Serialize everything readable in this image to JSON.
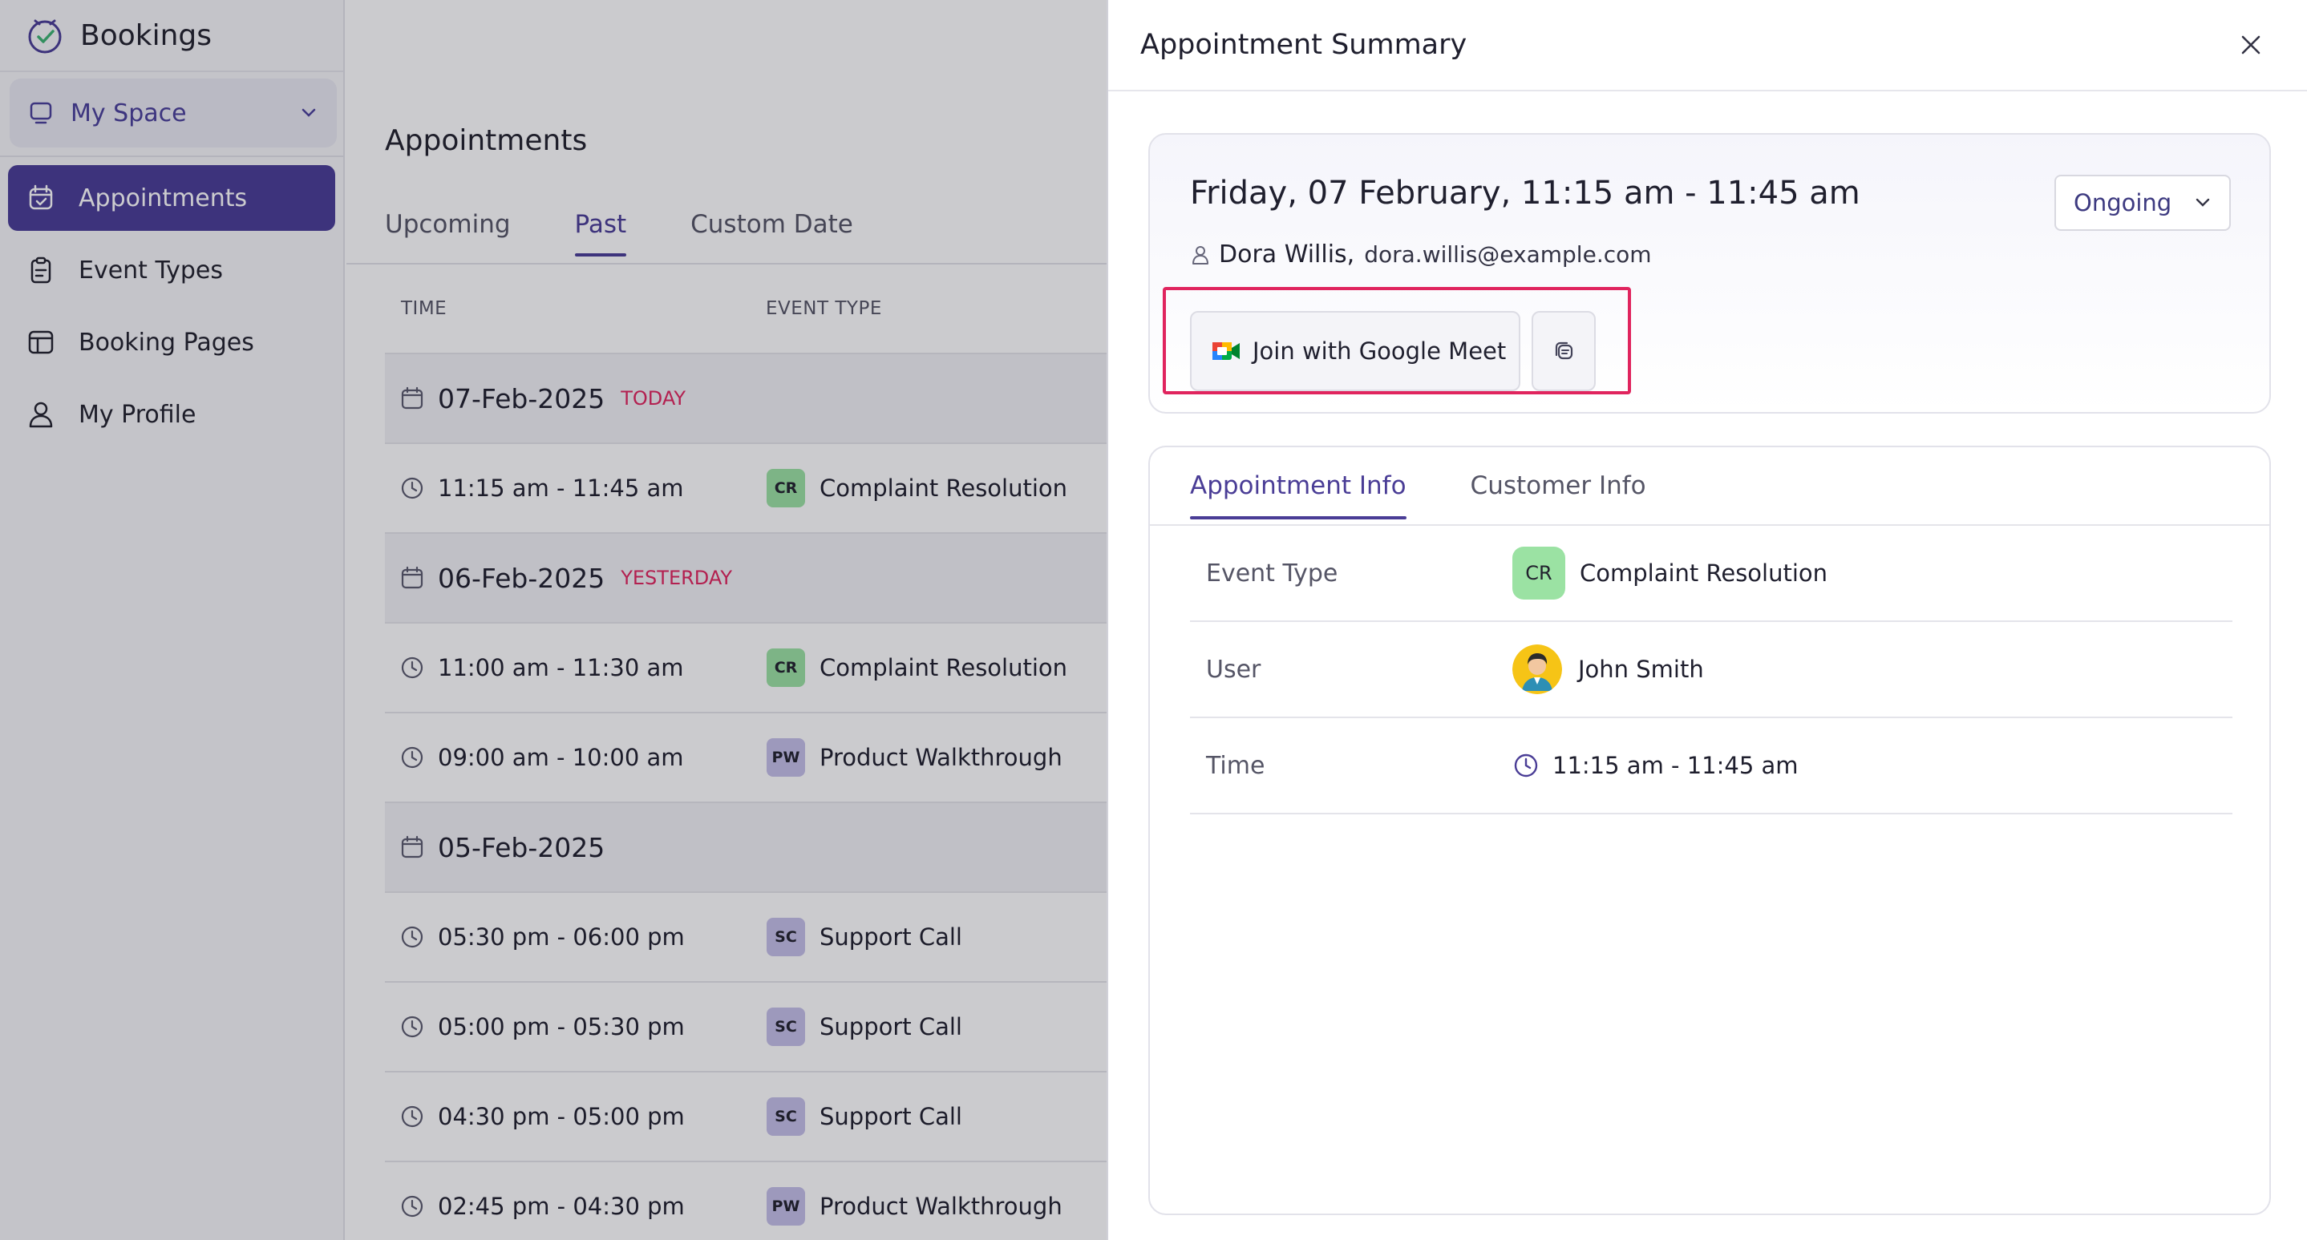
{
  "app": {
    "name": "Bookings"
  },
  "sidebar": {
    "space": {
      "label": "My Space"
    },
    "items": [
      {
        "label": "Appointments",
        "icon": "calendar-check-icon",
        "active": true
      },
      {
        "label": "Event Types",
        "icon": "clipboard-icon",
        "active": false
      },
      {
        "label": "Booking Pages",
        "icon": "layout-icon",
        "active": false
      },
      {
        "label": "My Profile",
        "icon": "user-icon",
        "active": false
      }
    ]
  },
  "main": {
    "title": "Appointments",
    "tabs": [
      {
        "label": "Upcoming",
        "active": false
      },
      {
        "label": "Past",
        "active": true
      },
      {
        "label": "Custom Date",
        "active": false
      }
    ],
    "columns": {
      "time": "TIME",
      "event_type": "EVENT TYPE"
    },
    "rows": [
      {
        "kind": "date",
        "date": "07-Feb-2025",
        "tag": "TODAY"
      },
      {
        "kind": "slot",
        "time": "11:15 am - 11:45 am",
        "badge": "CR",
        "event": "Complaint Resolution"
      },
      {
        "kind": "date",
        "date": "06-Feb-2025",
        "tag": "YESTERDAY"
      },
      {
        "kind": "slot",
        "time": "11:00 am - 11:30 am",
        "badge": "CR",
        "event": "Complaint Resolution"
      },
      {
        "kind": "slot",
        "time": "09:00 am - 10:00 am",
        "badge": "PW",
        "event": "Product Walkthrough"
      },
      {
        "kind": "date",
        "date": "05-Feb-2025",
        "tag": ""
      },
      {
        "kind": "slot",
        "time": "05:30 pm - 06:00 pm",
        "badge": "SC",
        "event": "Support Call"
      },
      {
        "kind": "slot",
        "time": "05:00 pm - 05:30 pm",
        "badge": "SC",
        "event": "Support Call"
      },
      {
        "kind": "slot",
        "time": "04:30 pm - 05:00 pm",
        "badge": "SC",
        "event": "Support Call"
      },
      {
        "kind": "slot",
        "time": "02:45 pm - 04:30 pm",
        "badge": "PW",
        "event": "Product Walkthrough"
      }
    ]
  },
  "summary": {
    "title": "Appointment Summary",
    "datetime": "Friday, 07 February, 11:15 am - 11:45 am",
    "status": "Ongoing",
    "customer_name": "Dora Willis,",
    "customer_email": "dora.willis@example.com",
    "join_label": "Join with Google Meet",
    "tabs": [
      {
        "label": "Appointment Info",
        "active": true
      },
      {
        "label": "Customer Info",
        "active": false
      }
    ],
    "info": {
      "event_type_key": "Event Type",
      "event_type_badge": "CR",
      "event_type_value": "Complaint Resolution",
      "user_key": "User",
      "user_value": "John Smith",
      "time_key": "Time",
      "time_value": "11:15 am - 11:45 am"
    }
  },
  "colors": {
    "accent": "#4a3d96",
    "highlight": "#e0245e",
    "badge_cr": "#9be2a3",
    "badge_pw": "#c5bfe8",
    "badge_sc": "#c5bfe8"
  }
}
